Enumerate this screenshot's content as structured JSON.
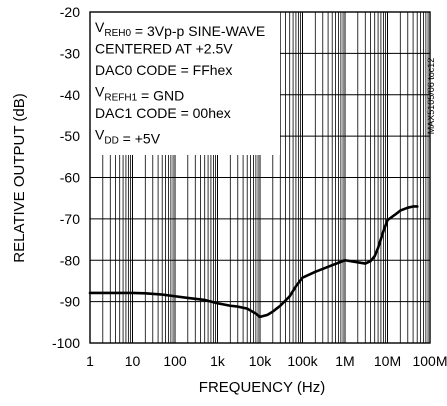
{
  "chart_data": {
    "type": "line",
    "xlabel": "FREQUENCY (Hz)",
    "ylabel": "RELATIVE OUTPUT (dB)",
    "x_scale": "log",
    "xlim": [
      1,
      100000000
    ],
    "ylim": [
      -100,
      -20
    ],
    "grid": true,
    "x_ticks": [
      {
        "value": 1,
        "label": "1"
      },
      {
        "value": 10,
        "label": "10"
      },
      {
        "value": 100,
        "label": "100"
      },
      {
        "value": 1000,
        "label": "1k"
      },
      {
        "value": 10000,
        "label": "10k"
      },
      {
        "value": 100000,
        "label": "100k"
      },
      {
        "value": 1000000,
        "label": "1M"
      },
      {
        "value": 10000000,
        "label": "10M"
      },
      {
        "value": 100000000,
        "label": "100M"
      }
    ],
    "y_ticks": [
      {
        "value": -20,
        "label": "-20"
      },
      {
        "value": -30,
        "label": "-30"
      },
      {
        "value": -40,
        "label": "-40"
      },
      {
        "value": -50,
        "label": "-50"
      },
      {
        "value": -60,
        "label": "-60"
      },
      {
        "value": -70,
        "label": "-70"
      },
      {
        "value": -80,
        "label": "-80"
      },
      {
        "value": -90,
        "label": "-90"
      },
      {
        "value": -100,
        "label": "-100"
      }
    ],
    "annotation_lines": [
      [
        {
          "t": "V"
        },
        {
          "t": "REH0",
          "sub": true
        },
        {
          "t": " = 3Vp-p SINE-WAVE"
        }
      ],
      [
        {
          "t": "CENTERED AT +2.5V"
        }
      ],
      [
        {
          "t": "DAC0 CODE = FFhex"
        }
      ],
      [
        {
          "t": "V"
        },
        {
          "t": "REFH1",
          "sub": true
        },
        {
          "t": " = GND"
        }
      ],
      [
        {
          "t": "DAC1 CODE = 00hex"
        }
      ],
      [
        {
          "t": "V"
        },
        {
          "t": "DD",
          "sub": true
        },
        {
          "t": " = +5V"
        }
      ]
    ],
    "figure_id": "MAX5105/06 toc12",
    "series": [
      {
        "x": [
          1,
          2,
          5,
          10,
          20,
          50,
          100,
          200,
          500,
          1000,
          2000,
          3000,
          5000,
          8000,
          10000,
          15000,
          20000,
          30000,
          50000,
          70000,
          100000,
          200000,
          500000,
          1000000,
          1500000,
          2000000,
          3000000,
          4000000,
          5000000,
          6000000,
          8000000,
          10000000,
          15000000,
          20000000,
          30000000,
          40000000,
          50000000
        ],
        "y": [
          -87.9,
          -87.9,
          -87.9,
          -87.9,
          -88.0,
          -88.3,
          -88.7,
          -89.1,
          -89.6,
          -90.4,
          -91.0,
          -91.2,
          -91.7,
          -92.9,
          -93.7,
          -93.2,
          -92.4,
          -91.0,
          -88.7,
          -86.3,
          -84.2,
          -82.8,
          -81.2,
          -80.0,
          -80.3,
          -80.5,
          -80.8,
          -80.2,
          -79.0,
          -77.0,
          -73.0,
          -70.3,
          -69.0,
          -68.0,
          -67.3,
          -67.0,
          -67.0
        ]
      }
    ]
  }
}
